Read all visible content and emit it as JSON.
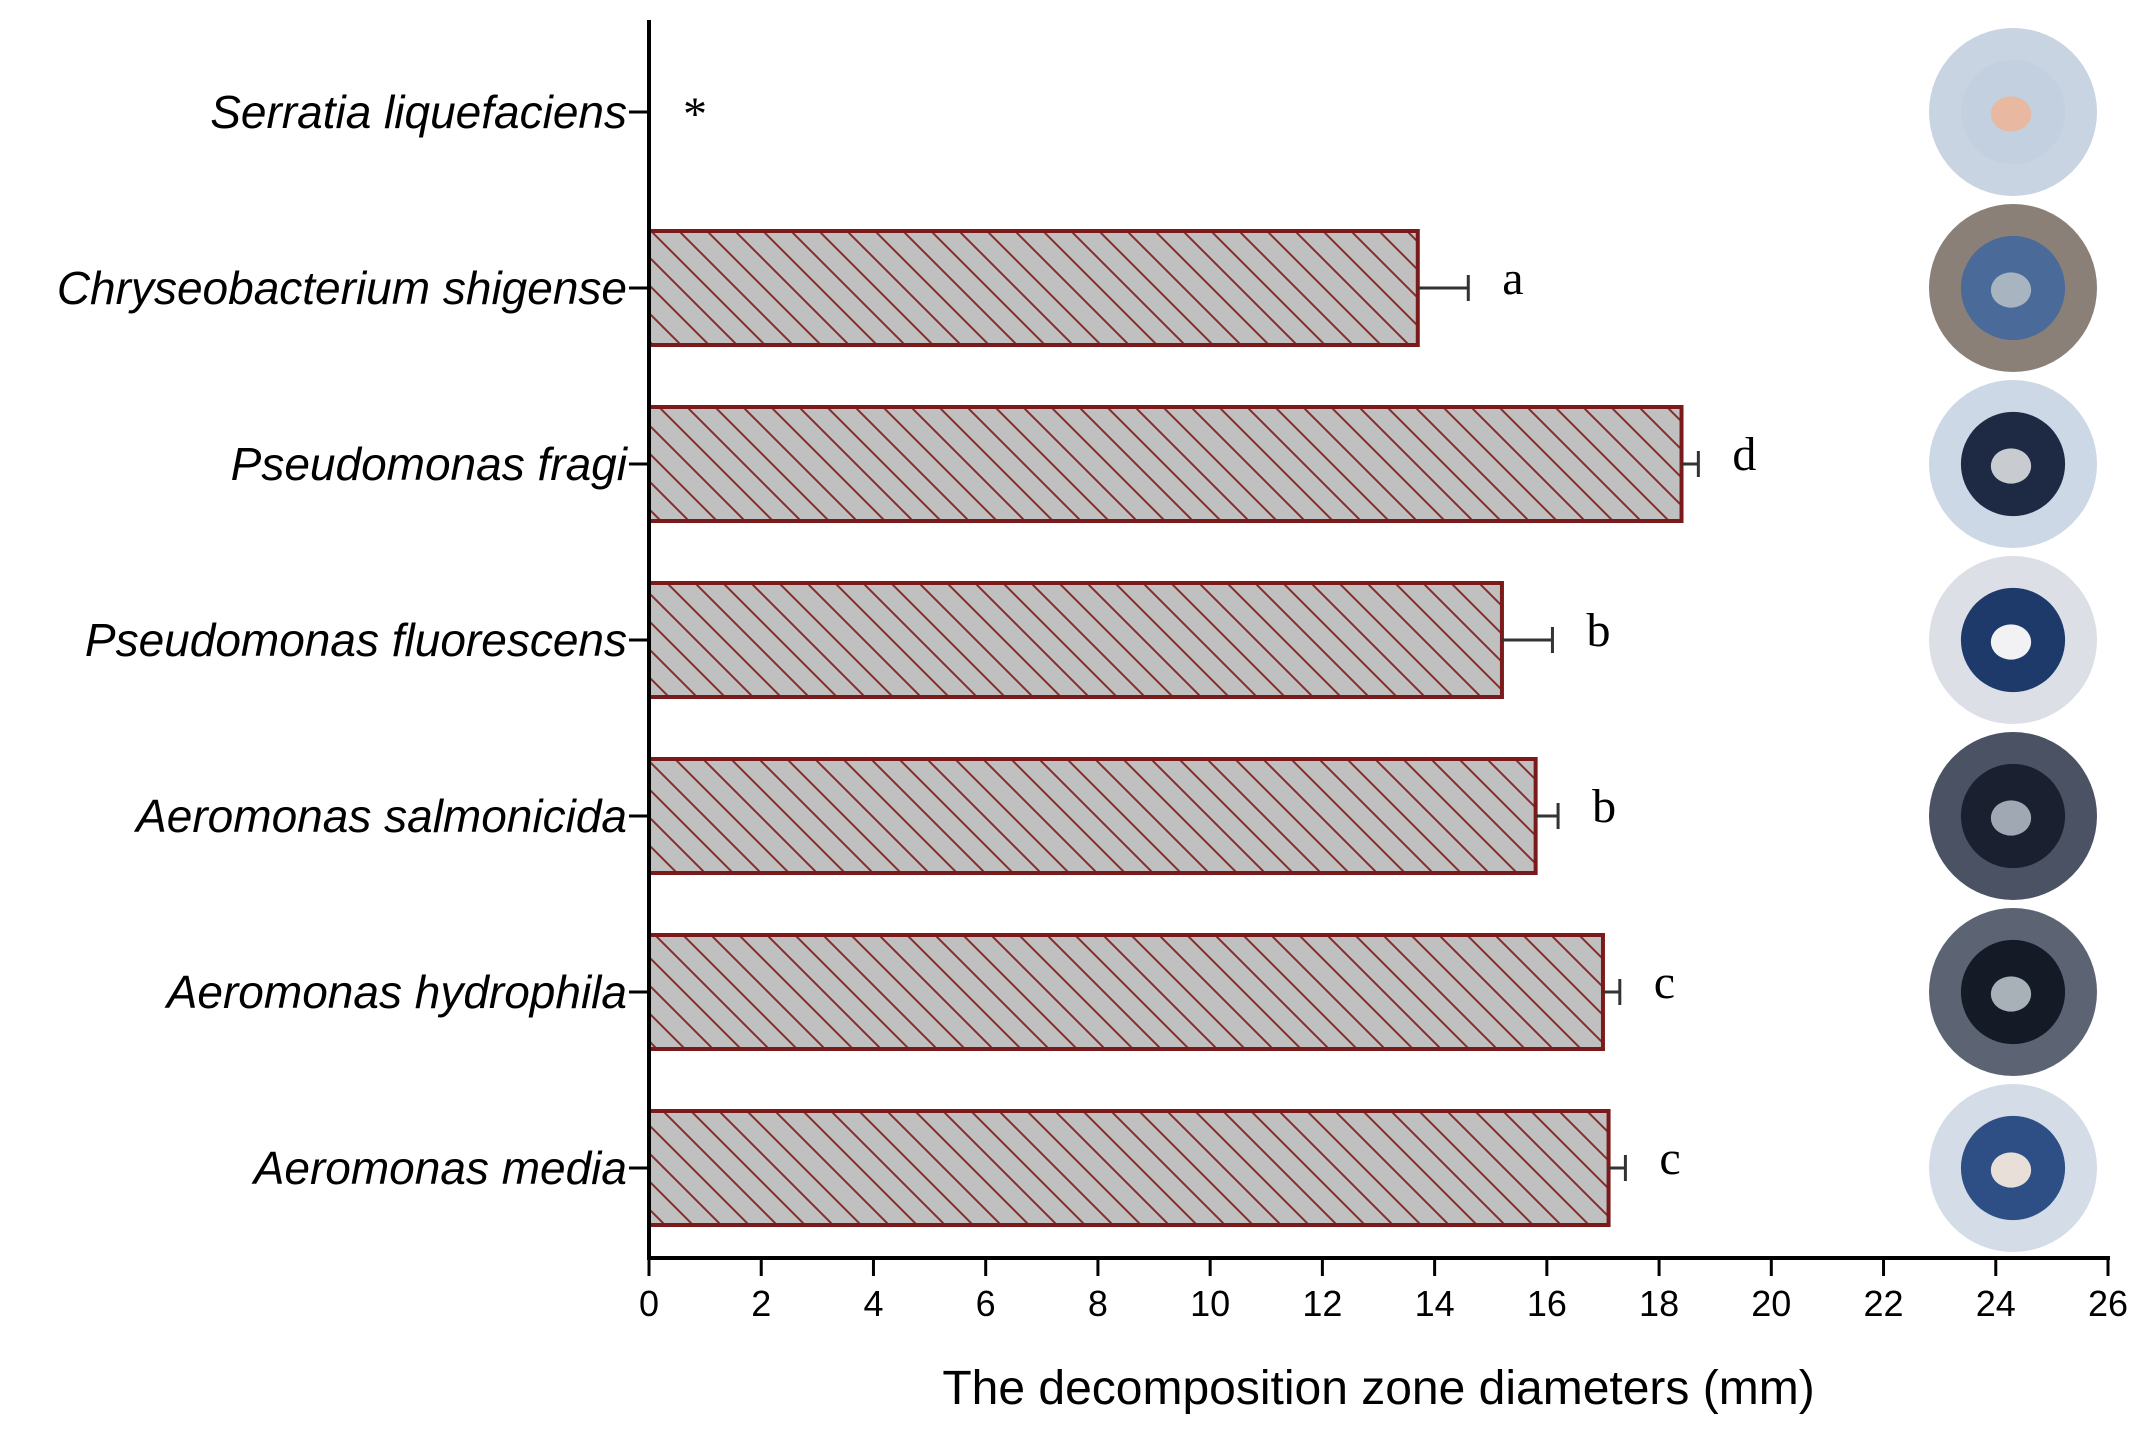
{
  "chart_data": {
    "type": "bar",
    "orientation": "horizontal",
    "categories": [
      "Serratia liquefaciens",
      "Chryseobacterium shigense",
      "Pseudomonas fragi",
      "Pseudomonas fluorescens",
      "Aeromonas salmonicida",
      "Aeromonas hydrophila",
      "Aeromonas media"
    ],
    "values": [
      0,
      13.7,
      18.4,
      15.2,
      15.8,
      17.0,
      17.1
    ],
    "errors": [
      0,
      0.9,
      0.3,
      0.9,
      0.4,
      0.3,
      0.3
    ],
    "annotations": [
      "*",
      "a",
      "d",
      "b",
      "b",
      "c",
      "c"
    ],
    "xlabel": "The decomposition zone diameters (mm)",
    "xlim": [
      0,
      26
    ],
    "xticks": [
      0,
      2,
      4,
      6,
      8,
      10,
      12,
      14,
      16,
      18,
      20,
      22,
      24,
      26
    ],
    "grid": false,
    "colors": {
      "bar_fill": "#c0c0c0",
      "bar_edge": "#7b1a1a",
      "hatch": "#8b2a2a",
      "error_bar": "#333333",
      "axis": "#000000"
    },
    "plate_styles": [
      {
        "outer": "#c8d4e2",
        "halo": "#c2d0e0",
        "colony": "#e8b8a0"
      },
      {
        "outer": "#8a8078",
        "halo": "#4a6a9a",
        "colony": "#a8b4c0"
      },
      {
        "outer": "#cdd8e6",
        "halo": "#1e2a44",
        "colony": "#c8ccd0"
      },
      {
        "outer": "#dcdfe6",
        "halo": "#1e3a6a",
        "colony": "#f2f2f4"
      },
      {
        "outer": "#4a5264",
        "halo": "#1a2030",
        "colony": "#a0a8b4"
      },
      {
        "outer": "#5c6474",
        "halo": "#141a26",
        "colony": "#a8b0b8"
      },
      {
        "outer": "#d4dce8",
        "halo": "#2e4e86",
        "colony": "#e8e0d8"
      }
    ]
  }
}
